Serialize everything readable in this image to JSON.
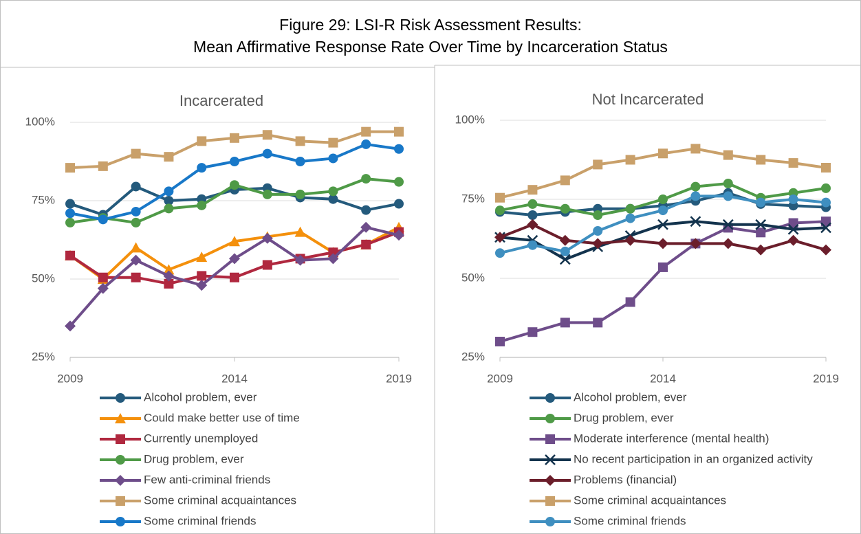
{
  "figure": {
    "title": [
      "Figure 29: LSI-R Risk Assessment Results:",
      "Mean Affirmative Response Rate Over Time by Incarceration Status"
    ]
  },
  "chart_data": [
    {
      "type": "line",
      "title": "Incarcerated",
      "x": [
        2009,
        2010,
        2011,
        2012,
        2013,
        2014,
        2015,
        2016,
        2017,
        2018,
        2019
      ],
      "xlim": [
        2009,
        2019
      ],
      "xticks": [
        2009,
        2014,
        2019
      ],
      "ylim": [
        25,
        100
      ],
      "yticks": [
        {
          "value": 25,
          "label": "25%"
        },
        {
          "value": 50,
          "label": "50%"
        },
        {
          "value": 75,
          "label": "75%"
        },
        {
          "value": 100,
          "label": "100%"
        }
      ],
      "grid": true,
      "series": [
        {
          "name": "Alcohol problem, ever",
          "color": "#245a7c",
          "marker": "circle",
          "values": [
            74,
            70.5,
            79.5,
            75,
            75.5,
            78.5,
            79,
            76,
            75.5,
            72,
            74
          ]
        },
        {
          "name": "Could make better use of time",
          "color": "#f4900c",
          "marker": "triangle",
          "values": [
            57.5,
            50,
            60,
            53,
            57,
            62,
            63.5,
            65,
            58.5,
            61,
            66.5
          ]
        },
        {
          "name": "Currently unemployed",
          "color": "#b0283f",
          "marker": "square",
          "values": [
            57.5,
            50.5,
            50.5,
            48.5,
            51,
            50.5,
            54.5,
            56.5,
            58.5,
            61,
            65
          ]
        },
        {
          "name": "Drug problem, ever",
          "color": "#4f9a47",
          "marker": "circle",
          "values": [
            68,
            69.5,
            68,
            72.5,
            73.5,
            80,
            77,
            77,
            78,
            82,
            81
          ]
        },
        {
          "name": "Few anti-criminal friends",
          "color": "#6e4d8a",
          "marker": "diamond",
          "values": [
            35,
            47,
            56,
            51,
            48,
            56.5,
            63,
            56,
            56.5,
            66.5,
            64
          ]
        },
        {
          "name": "Some criminal acquaintances",
          "color": "#c9a06a",
          "marker": "square",
          "values": [
            85.5,
            86,
            90,
            89,
            94,
            95,
            96,
            94,
            93.5,
            97,
            97
          ]
        },
        {
          "name": "Some criminal friends",
          "color": "#1878c8",
          "marker": "circle",
          "values": [
            71,
            69,
            71.5,
            78,
            85.5,
            87.5,
            90,
            87.5,
            88.5,
            93,
            91.5
          ]
        }
      ]
    },
    {
      "type": "line",
      "title": "Not Incarcerated",
      "x": [
        2009,
        2010,
        2011,
        2012,
        2013,
        2014,
        2015,
        2016,
        2017,
        2018,
        2019
      ],
      "xlim": [
        2009,
        2019
      ],
      "xticks": [
        2009,
        2014,
        2019
      ],
      "ylim": [
        25,
        100
      ],
      "yticks": [
        {
          "value": 25,
          "label": "25%"
        },
        {
          "value": 50,
          "label": "50%"
        },
        {
          "value": 75,
          "label": "75%"
        },
        {
          "value": 100,
          "label": "100%"
        }
      ],
      "grid": true,
      "series": [
        {
          "name": "Alcohol problem, ever",
          "color": "#245a7c",
          "marker": "circle",
          "values": [
            71,
            70,
            71,
            72,
            72,
            73,
            74.5,
            77,
            73.5,
            73,
            72.5
          ]
        },
        {
          "name": "Drug problem, ever",
          "color": "#4f9a47",
          "marker": "circle",
          "values": [
            71.5,
            73.5,
            72,
            70,
            72,
            75,
            79,
            80,
            75.5,
            77,
            78.5
          ]
        },
        {
          "name": "Moderate interference (mental health)",
          "color": "#6e4d8a",
          "marker": "square",
          "values": [
            30,
            33,
            36,
            36,
            42.5,
            53.5,
            61,
            66,
            64.5,
            67.5,
            68
          ]
        },
        {
          "name": "No recent participation in an organized activity",
          "color": "#13334d",
          "marker": "x",
          "values": [
            63,
            62,
            56,
            60,
            63.5,
            67,
            68,
            67,
            67,
            65.5,
            66
          ]
        },
        {
          "name": "Problems (financial)",
          "color": "#6b1e2b",
          "marker": "diamond",
          "values": [
            63,
            67,
            62,
            61,
            62,
            61,
            61,
            61,
            59,
            62,
            59
          ]
        },
        {
          "name": "Some criminal acquaintances",
          "color": "#c9a06a",
          "marker": "square",
          "values": [
            75.5,
            78,
            81,
            86,
            87.5,
            89.5,
            91,
            89,
            87.5,
            86.5,
            85
          ]
        },
        {
          "name": "Some criminal friends",
          "color": "#3f8fc0",
          "marker": "circle",
          "values": [
            58,
            60.5,
            58.5,
            65,
            69,
            71.5,
            76,
            76,
            74,
            75,
            74
          ]
        }
      ]
    }
  ]
}
